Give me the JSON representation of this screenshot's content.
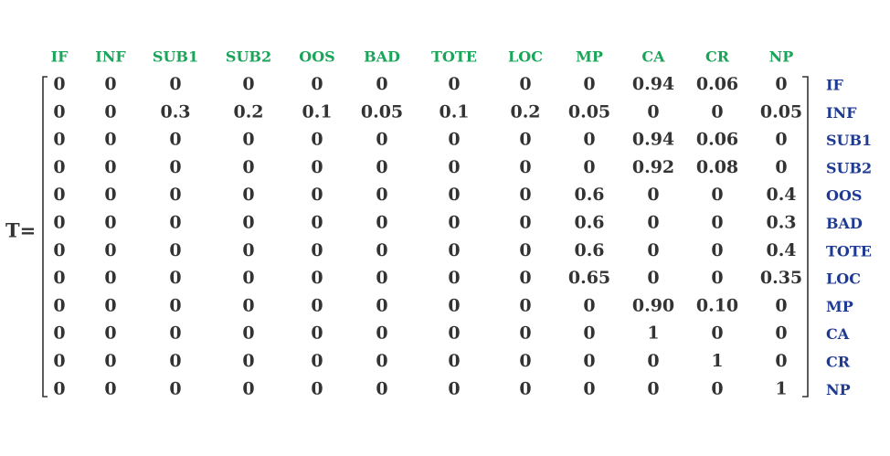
{
  "matrix": {
    "label": "T=",
    "columns": [
      "IF",
      "INF",
      "SUB1",
      "SUB2",
      "OOS",
      "BAD",
      "TOTE",
      "LOC",
      "MP",
      "CA",
      "CR",
      "NP"
    ],
    "rows": [
      "IF",
      "INF",
      "SUB1",
      "SUB2",
      "OOS",
      "BAD",
      "TOTE",
      "LOC",
      "MP",
      "CA",
      "CR",
      "NP"
    ],
    "cells": [
      [
        "0",
        "0",
        "0",
        "0",
        "0",
        "0",
        "0",
        "0",
        "0",
        "0.94",
        "0.06",
        "0"
      ],
      [
        "0",
        "0",
        "0.3",
        "0.2",
        "0.1",
        "0.05",
        "0.1",
        "0.2",
        "0.05",
        "0",
        "0",
        "0.05"
      ],
      [
        "0",
        "0",
        "0",
        "0",
        "0",
        "0",
        "0",
        "0",
        "0",
        "0.94",
        "0.06",
        "0"
      ],
      [
        "0",
        "0",
        "0",
        "0",
        "0",
        "0",
        "0",
        "0",
        "0",
        "0.92",
        "0.08",
        "0"
      ],
      [
        "0",
        "0",
        "0",
        "0",
        "0",
        "0",
        "0",
        "0",
        "0.6",
        "0",
        "0",
        "0.4"
      ],
      [
        "0",
        "0",
        "0",
        "0",
        "0",
        "0",
        "0",
        "0",
        "0.6",
        "0",
        "0",
        "0.3"
      ],
      [
        "0",
        "0",
        "0",
        "0",
        "0",
        "0",
        "0",
        "0",
        "0.6",
        "0",
        "0",
        "0.4"
      ],
      [
        "0",
        "0",
        "0",
        "0",
        "0",
        "0",
        "0",
        "0",
        "0.65",
        "0",
        "0",
        "0.35"
      ],
      [
        "0",
        "0",
        "0",
        "0",
        "0",
        "0",
        "0",
        "0",
        "0",
        "0.90",
        "0.10",
        "0"
      ],
      [
        "0",
        "0",
        "0",
        "0",
        "0",
        "0",
        "0",
        "0",
        "0",
        "1",
        "0",
        "0"
      ],
      [
        "0",
        "0",
        "0",
        "0",
        "0",
        "0",
        "0",
        "0",
        "0",
        "0",
        "1",
        "0"
      ],
      [
        "0",
        "0",
        "0",
        "0",
        "0",
        "0",
        "0",
        "0",
        "0",
        "0",
        "0",
        "1"
      ]
    ]
  }
}
